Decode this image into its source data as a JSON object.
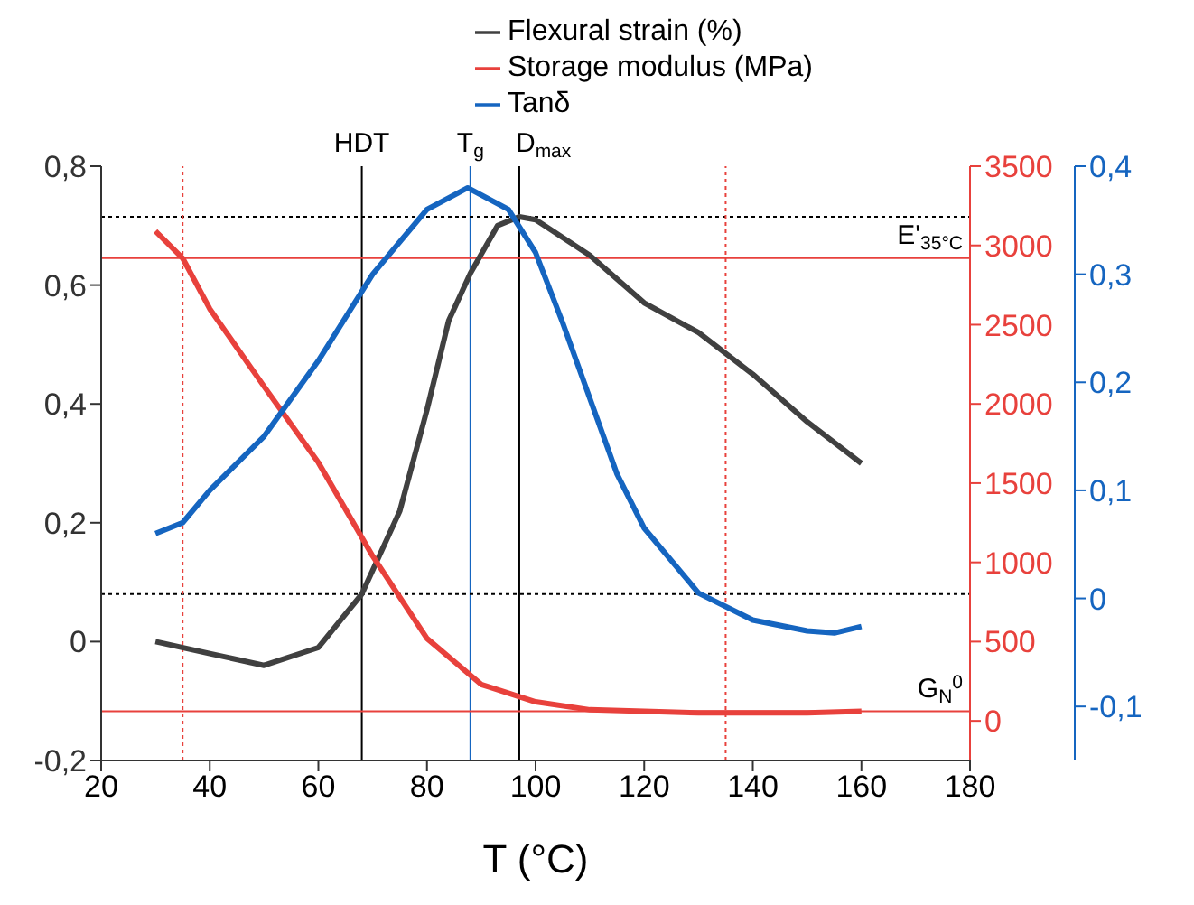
{
  "chart_data": {
    "type": "line",
    "xlabel": "T (°C)",
    "xlim": [
      20,
      180
    ],
    "xticks": [
      20,
      40,
      60,
      80,
      100,
      120,
      140,
      160,
      180
    ],
    "ylim": [
      -0.2,
      0.8
    ],
    "yticks": [
      {
        "value": -0.2,
        "label": "-0,2"
      },
      {
        "value": 0,
        "label": "0"
      },
      {
        "value": 0.2,
        "label": "0,2"
      },
      {
        "value": 0.4,
        "label": "0,4"
      },
      {
        "value": 0.6,
        "label": "0,6"
      },
      {
        "value": 0.8,
        "label": "0,8"
      }
    ],
    "y2lim": [
      -250,
      3500
    ],
    "y2ticks": [
      0,
      500,
      1000,
      1500,
      2000,
      2500,
      3000,
      3500
    ],
    "y3lim": [
      -0.15,
      0.4
    ],
    "y3ticks": [
      {
        "value": -0.1,
        "label": "-0,1"
      },
      {
        "value": 0,
        "label": "0"
      },
      {
        "value": 0.1,
        "label": "0,1"
      },
      {
        "value": 0.2,
        "label": "0,2"
      },
      {
        "value": 0.3,
        "label": "0,3"
      },
      {
        "value": 0.4,
        "label": "0,4"
      }
    ],
    "legend": "top right",
    "grid": false,
    "marker": "none",
    "line_style": "solid",
    "series": [
      {
        "name": "Flexural strain (%)",
        "color": "#404040",
        "x": [
          30,
          40,
          50,
          60,
          68,
          75,
          80,
          84,
          88,
          93,
          97,
          100,
          110,
          120,
          130,
          140,
          150,
          160
        ],
        "values": [
          0.0,
          -0.02,
          -0.04,
          -0.01,
          0.08,
          0.22,
          0.39,
          0.54,
          0.62,
          0.7,
          0.715,
          0.71,
          0.65,
          0.57,
          0.52,
          0.45,
          0.37,
          0.3
        ]
      },
      {
        "name": "Storage modulus (MPa)",
        "color": "#e8413c",
        "axis": "y2",
        "x": [
          30,
          35,
          40,
          50,
          60,
          70,
          80,
          90,
          100,
          110,
          120,
          130,
          140,
          150,
          160
        ],
        "values": [
          3090,
          2920,
          2600,
          2110,
          1630,
          1040,
          520,
          230,
          120,
          70,
          60,
          50,
          50,
          50,
          60
        ]
      },
      {
        "name": "Tanδ",
        "color": "#1565c0",
        "axis": "y3",
        "x": [
          30,
          35,
          40,
          50,
          60,
          70,
          80,
          87.5,
          95,
          100,
          105,
          110,
          115,
          120,
          130,
          140,
          150,
          155,
          160
        ],
        "values": [
          0.06,
          0.07,
          0.1,
          0.15,
          0.22,
          0.3,
          0.36,
          0.38,
          0.36,
          0.32,
          0.255,
          0.185,
          0.115,
          0.065,
          0.005,
          -0.02,
          -0.03,
          -0.032,
          -0.026
        ]
      }
    ],
    "ref_lines": [
      {
        "axis": "x",
        "value": 68,
        "label": "HDT",
        "color": "#000000",
        "line_style": "solid"
      },
      {
        "axis": "x",
        "value": 88,
        "label": "T$_{g}$",
        "color": "#1565c0",
        "line_style": "solid"
      },
      {
        "axis": "x",
        "value": 97,
        "label": "D$_{max}$",
        "color": "#000000",
        "line_style": "solid"
      },
      {
        "axis": "y",
        "value": 0.715,
        "color": "#000000",
        "line_style": "dotted"
      },
      {
        "axis": "y",
        "value": 0.08,
        "color": "#000000",
        "line_style": "dotted"
      },
      {
        "axis": "y2",
        "value": 2920,
        "label": "E'$_{35°C}$",
        "color": "#e8413c",
        "line_style": "solid"
      },
      {
        "axis": "y2",
        "value": 60,
        "label": "G$_{N}$$^{0}$",
        "color": "#e8413c",
        "line_style": "solid"
      },
      {
        "axis": "x",
        "value": 35,
        "color": "#e8413c",
        "line_style": "dotted"
      },
      {
        "axis": "x",
        "value": 135,
        "color": "#e8413c",
        "line_style": "dotted"
      }
    ]
  }
}
